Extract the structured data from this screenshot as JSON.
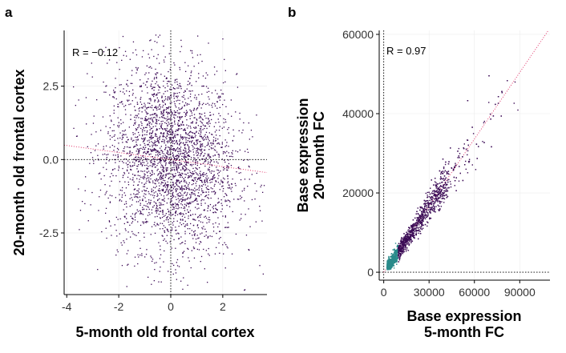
{
  "chart_data": [
    {
      "type": "scatter",
      "panel": "a",
      "xlabel": "5-month old frontal cortex",
      "ylabel": "20-month old frontal cortex",
      "x_ticks": [
        "-4",
        "-2",
        "0",
        "2"
      ],
      "y_ticks": [
        "-2.5",
        "0.0",
        "2.5"
      ],
      "xlim": [
        -4.1,
        3.7
      ],
      "ylim": [
        -4.6,
        4.4
      ],
      "annotation": "R = −0.12",
      "correlation": -0.12,
      "regression": {
        "slope": -0.12,
        "intercept": 0.0
      },
      "point_color": "#3b0a55",
      "regression_color": "#e0245e",
      "grid": true,
      "description_points": "approx. 3000 points, x roughly normal(0,1.3), y roughly normal(0,1.6)"
    },
    {
      "type": "scatter",
      "panel": "b",
      "xlabel": [
        "Base expression",
        "5-month FC"
      ],
      "ylabel": [
        "Base expression",
        "20-month FC"
      ],
      "x_ticks": [
        "0",
        "30000",
        "60000",
        "90000"
      ],
      "y_ticks": [
        "0",
        "20000",
        "40000",
        "60000"
      ],
      "xlim": [
        -3000,
        110000
      ],
      "ylim": [
        -2000,
        61000
      ],
      "annotation": "R = 0.97",
      "correlation": 0.97,
      "regression": {
        "slope": 0.56,
        "intercept": 0
      },
      "point_color": "#3b0a55",
      "dense_color": "#2a8a8a",
      "regression_color": "#e0245e",
      "grid": true
    }
  ]
}
